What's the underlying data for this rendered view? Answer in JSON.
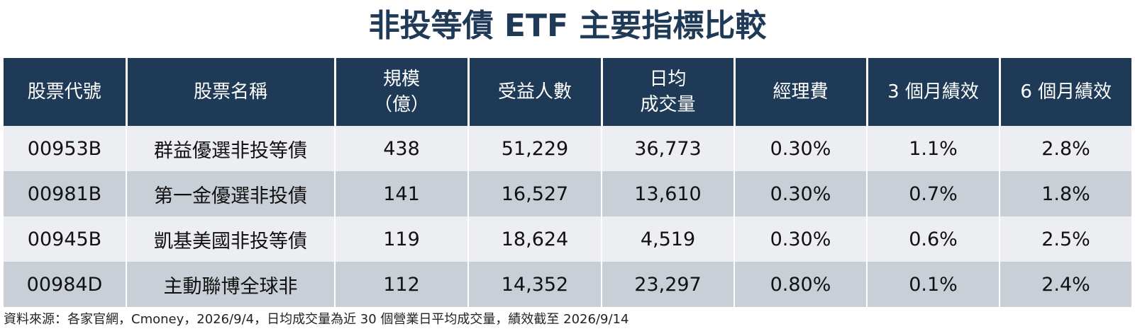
{
  "title": "非投等債 ETF 主要指標比較",
  "table": {
    "headers": [
      [
        "股票代號"
      ],
      [
        "股票名稱"
      ],
      [
        "規模",
        "（億）"
      ],
      [
        "受益人數"
      ],
      [
        "日均",
        "成交量"
      ],
      [
        "經理費"
      ],
      [
        "3 個月績效"
      ],
      [
        "6 個月績效"
      ]
    ],
    "rows": [
      [
        "00953B",
        "群益優選非投等債",
        "438",
        "51,229",
        "36,773",
        "0.30%",
        "1.1%",
        "2.8%"
      ],
      [
        "00981B",
        "第一金優選非投債",
        "141",
        "16,527",
        "13,610",
        "0.30%",
        "0.7%",
        "1.8%"
      ],
      [
        "00945B",
        "凱基美國非投等債",
        "119",
        "18,624",
        "4,519",
        "0.30%",
        "0.6%",
        "2.5%"
      ],
      [
        "00984D",
        "主動聯博全球非",
        "112",
        "14,352",
        "23,297",
        "0.80%",
        "0.1%",
        "2.4%"
      ]
    ]
  },
  "footnote": "資料來源：各家官網，Cmoney，2026/9/4，日均成交量為近 30 個營業日平均成交量，績效截至 2026/9/14"
}
